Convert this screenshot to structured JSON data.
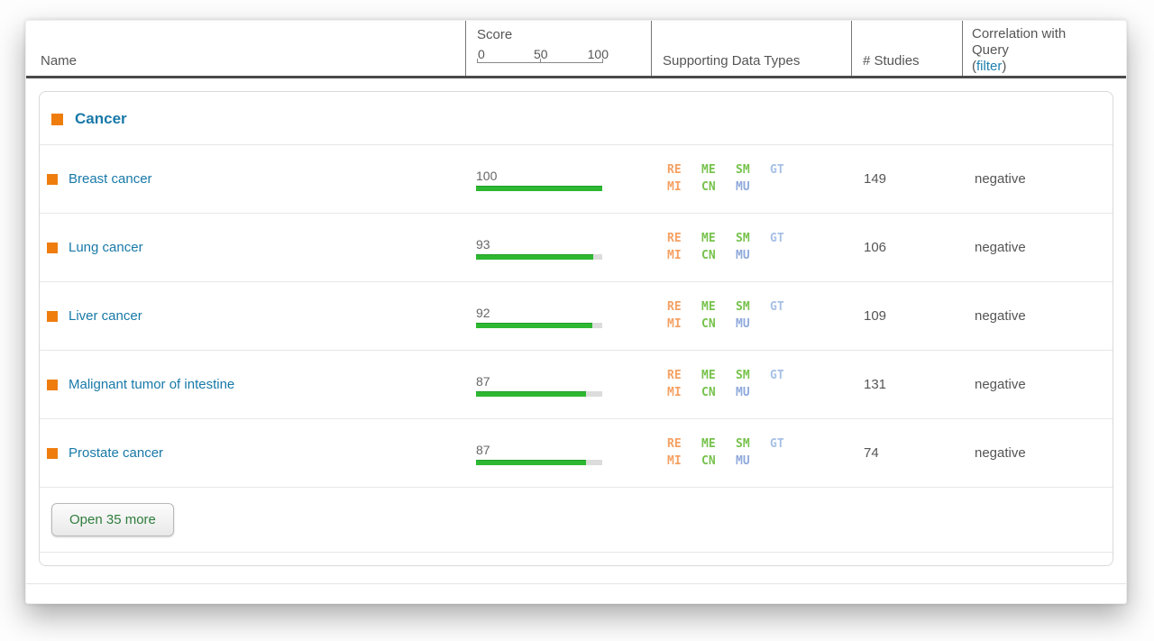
{
  "table": {
    "header": {
      "name": "Name",
      "score": {
        "label": "Score",
        "ticks": [
          "0",
          "50",
          "100"
        ]
      },
      "data_types": "Supporting Data Types",
      "studies": "# Studies",
      "correlation": {
        "title": "Correlation with Query",
        "paren_open": "(",
        "filter_label": "filter",
        "paren_close": ")"
      }
    },
    "group": {
      "label": "Cancer"
    },
    "rows": [
      {
        "name": "Breast cancer",
        "score": 100,
        "studies": "149",
        "correlation": "negative"
      },
      {
        "name": "Lung cancer",
        "score": 93,
        "studies": "106",
        "correlation": "negative"
      },
      {
        "name": "Liver cancer",
        "score": 92,
        "studies": "109",
        "correlation": "negative"
      },
      {
        "name": "Malignant tumor of intestine",
        "score": 87,
        "studies": "131",
        "correlation": "negative"
      },
      {
        "name": "Prostate cancer",
        "score": 87,
        "studies": "74",
        "correlation": "negative"
      }
    ],
    "badges": {
      "row1": [
        {
          "code": "RE",
          "color": "orange"
        },
        {
          "code": "ME",
          "color": "green"
        },
        {
          "code": "SM",
          "color": "green"
        },
        {
          "code": "GT",
          "color": "blue-light"
        }
      ],
      "row2": [
        {
          "code": "MI",
          "color": "orange"
        },
        {
          "code": "CN",
          "color": "green"
        },
        {
          "code": "MU",
          "color": "blue"
        }
      ]
    },
    "footer": {
      "open_more": "Open 35 more"
    }
  },
  "colors": {
    "accent_orange": "#ee7d0e",
    "link_teal": "#1879a8",
    "bar_green": "#2eb832",
    "badge_orange": "#f5a163",
    "badge_green": "#77c24d",
    "badge_blue": "#90aadc",
    "button_green": "#2e7d3c"
  }
}
